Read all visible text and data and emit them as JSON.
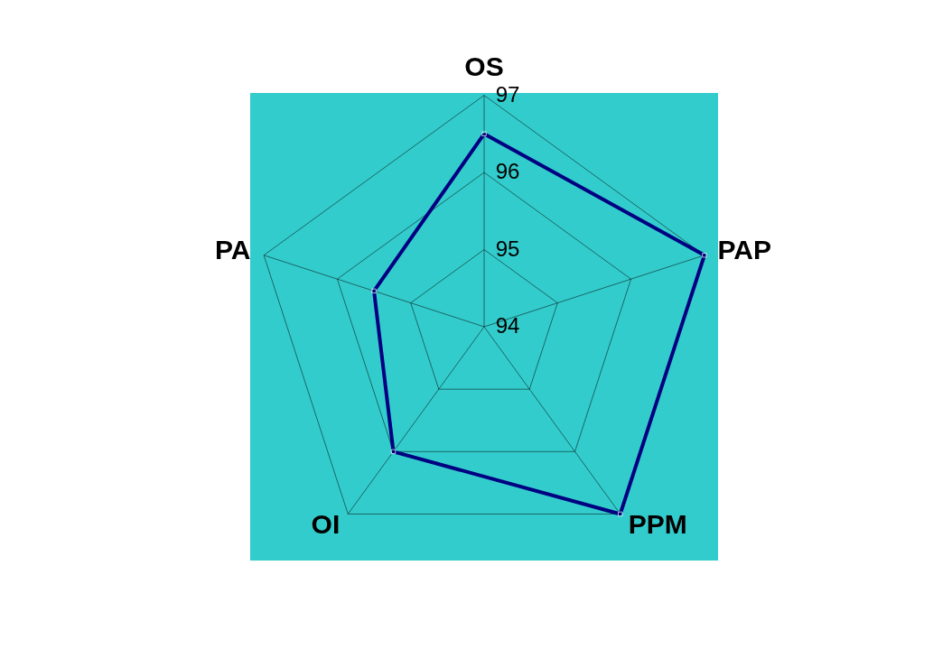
{
  "chart_data": {
    "type": "radar",
    "categories": [
      "OS",
      "PAP",
      "PPM",
      "OI",
      "PA"
    ],
    "series": [
      {
        "color": "#000080",
        "values": [
          96.5,
          97,
          97,
          96.0,
          95.5
        ]
      }
    ],
    "ylim": [
      94,
      97
    ],
    "yticks": [
      94,
      95,
      96,
      97
    ],
    "grid": true,
    "marker": "square",
    "line_style": "solid"
  }
}
